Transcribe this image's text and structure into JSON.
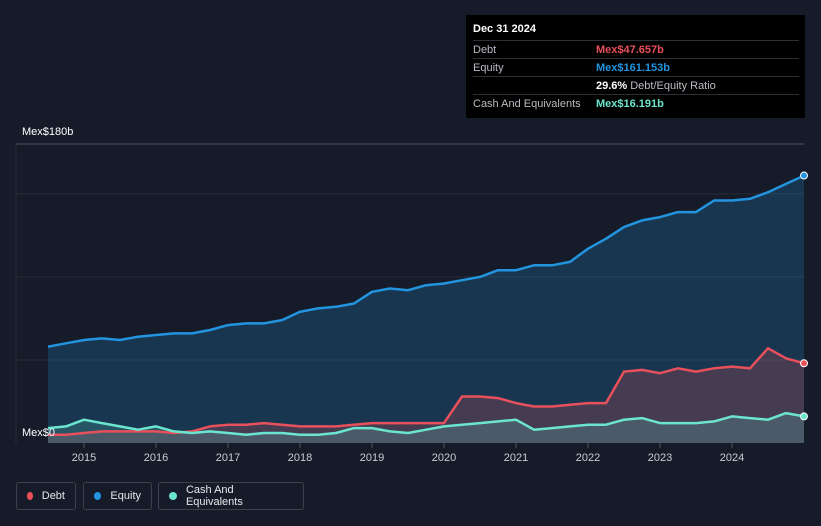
{
  "tooltip": {
    "date": "Dec 31 2024",
    "rows": [
      {
        "label": "Debt",
        "value": "Mex$47.657b",
        "color": "#e8505b"
      },
      {
        "label": "Equity",
        "value": "Mex$161.153b",
        "color": "#2394df"
      },
      {
        "label": "",
        "value": "29.6%",
        "suffix": "Debt/Equity Ratio",
        "color": "#ffffff"
      },
      {
        "label": "Cash And Equivalents",
        "value": "Mex$16.191b",
        "color": "#6ce5cf"
      }
    ]
  },
  "legend": [
    {
      "label": "Debt",
      "color": "#e8505b"
    },
    {
      "label": "Equity",
      "color": "#2394df"
    },
    {
      "label": "Cash And Equivalents",
      "color": "#6ce5cf"
    }
  ],
  "chart_data": {
    "type": "area",
    "title": "",
    "ylabel": "",
    "ylim": [
      0,
      180
    ],
    "xlim": [
      2014.5,
      2025.0
    ],
    "y_top_label": "Mex$180b",
    "y_bottom_label": "Mex$0",
    "xticks": [
      2015,
      2016,
      2017,
      2018,
      2019,
      2020,
      2021,
      2022,
      2023,
      2024
    ],
    "xtick_labels": [
      "2015",
      "2016",
      "2017",
      "2018",
      "2019",
      "2020",
      "2021",
      "2022",
      "2023",
      "2024"
    ],
    "series": [
      {
        "name": "Equity",
        "color": "#2394df",
        "x": [
          2014.5,
          2014.75,
          2015.0,
          2015.25,
          2015.5,
          2015.75,
          2016.0,
          2016.25,
          2016.5,
          2016.75,
          2017.0,
          2017.25,
          2017.5,
          2017.75,
          2018.0,
          2018.25,
          2018.5,
          2018.75,
          2019.0,
          2019.25,
          2019.5,
          2019.75,
          2020.0,
          2020.25,
          2020.5,
          2020.75,
          2021.0,
          2021.25,
          2021.5,
          2021.75,
          2022.0,
          2022.25,
          2022.5,
          2022.75,
          2023.0,
          2023.25,
          2023.5,
          2023.75,
          2024.0,
          2024.25,
          2024.5,
          2024.75,
          2025.0
        ],
        "values": [
          58,
          60,
          62,
          63,
          62,
          64,
          65,
          66,
          66,
          68,
          71,
          72,
          72,
          74,
          79,
          81,
          82,
          84,
          91,
          93,
          92,
          95,
          96,
          98,
          100,
          104,
          104,
          107,
          107,
          109,
          117,
          123,
          130,
          134,
          136,
          139,
          139,
          146,
          146,
          147,
          151,
          156,
          161
        ]
      },
      {
        "name": "Debt",
        "color": "#e8505b",
        "x": [
          2014.5,
          2014.75,
          2015.0,
          2015.25,
          2015.5,
          2015.75,
          2016.0,
          2016.25,
          2016.5,
          2016.75,
          2017.0,
          2017.25,
          2017.5,
          2017.75,
          2018.0,
          2018.25,
          2018.5,
          2018.75,
          2019.0,
          2019.25,
          2019.5,
          2019.75,
          2020.0,
          2020.25,
          2020.5,
          2020.75,
          2021.0,
          2021.25,
          2021.5,
          2021.75,
          2022.0,
          2022.25,
          2022.5,
          2022.75,
          2023.0,
          2023.25,
          2023.5,
          2023.75,
          2024.0,
          2024.25,
          2024.5,
          2024.75,
          2025.0
        ],
        "values": [
          5,
          5,
          6,
          7,
          7,
          7,
          7,
          6,
          7,
          10,
          11,
          11,
          12,
          11,
          10,
          10,
          10,
          11,
          12,
          12,
          12,
          12,
          12,
          28,
          28,
          27,
          24,
          22,
          22,
          23,
          24,
          24,
          43,
          44,
          42,
          45,
          43,
          45,
          46,
          45,
          57,
          51,
          48
        ]
      },
      {
        "name": "Cash And Equivalents",
        "color": "#6ce5cf",
        "x": [
          2014.5,
          2014.75,
          2015.0,
          2015.25,
          2015.5,
          2015.75,
          2016.0,
          2016.25,
          2016.5,
          2016.75,
          2017.0,
          2017.25,
          2017.5,
          2017.75,
          2018.0,
          2018.25,
          2018.5,
          2018.75,
          2019.0,
          2019.25,
          2019.5,
          2019.75,
          2020.0,
          2020.25,
          2020.5,
          2020.75,
          2021.0,
          2021.25,
          2021.5,
          2021.75,
          2022.0,
          2022.25,
          2022.5,
          2022.75,
          2023.0,
          2023.25,
          2023.5,
          2023.75,
          2024.0,
          2024.25,
          2024.5,
          2024.75,
          2025.0
        ],
        "values": [
          9,
          10,
          14,
          12,
          10,
          8,
          10,
          7,
          6,
          7,
          6,
          5,
          6,
          6,
          5,
          5,
          6,
          9,
          9,
          7,
          6,
          8,
          10,
          11,
          12,
          13,
          14,
          8,
          9,
          10,
          11,
          11,
          14,
          15,
          12,
          12,
          12,
          13,
          16,
          15,
          14,
          18,
          16
        ]
      }
    ]
  }
}
